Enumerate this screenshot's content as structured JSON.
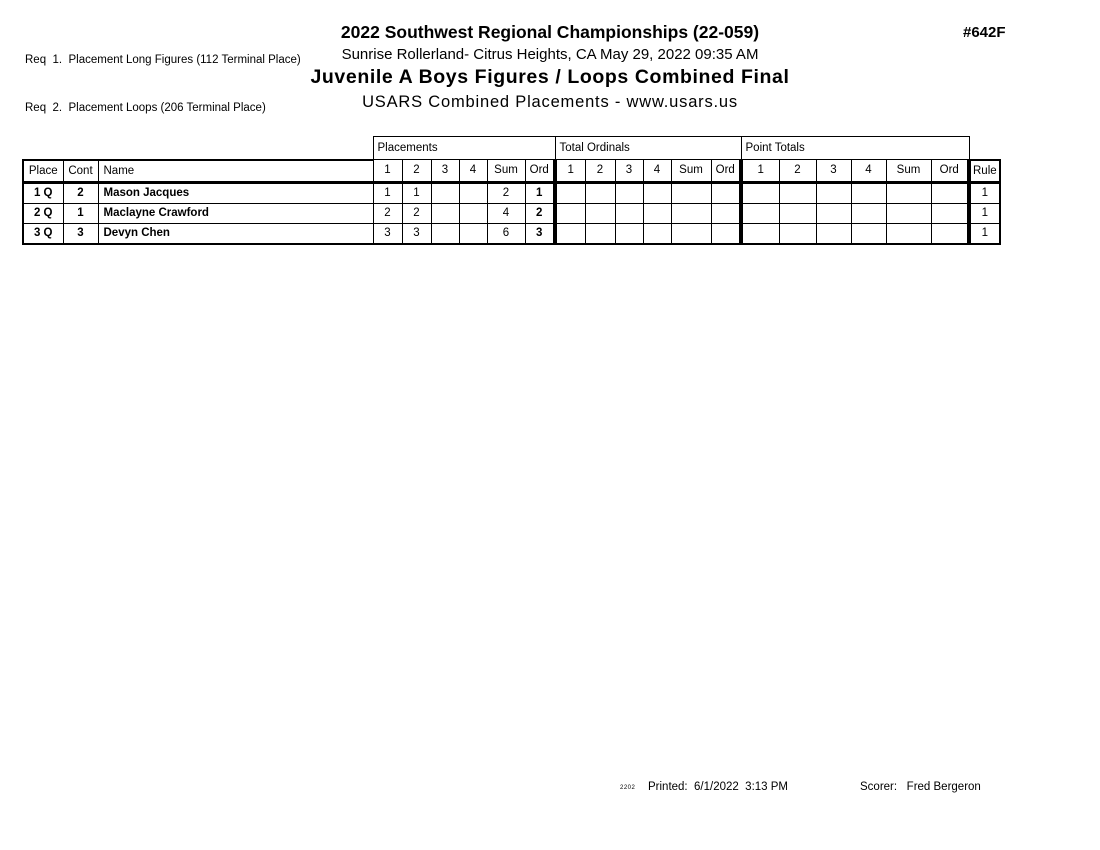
{
  "colors": {
    "ink": "#000000",
    "paper": "#ffffff"
  },
  "header": {
    "req_lines": [
      "Req  1.  Placement Long Figures (112 Terminal Place)",
      "Req  2.  Placement Loops (206 Terminal Place)"
    ],
    "event_code": "#642F",
    "title": "2022 Southwest Regional Championships (22-059)",
    "venue": "Sunrise Rollerland- Citrus Heights, CA  May 29, 2022  09:35 AM",
    "event_title": "Juvenile A Boys Figures / Loops Combined Final",
    "org_line": "USARS Combined Placements - www.usars.us"
  },
  "table": {
    "group_labels": [
      "Placements",
      "Total Ordinals",
      "Point Totals"
    ],
    "left_headers": [
      "Place",
      "Cont",
      "Name"
    ],
    "metric_headers": [
      "1",
      "2",
      "3",
      "4",
      "Sum",
      "Ord"
    ],
    "rule_header": "Rule",
    "rows": [
      {
        "place": "1 Q",
        "cont": "2",
        "name": "Mason Jacques",
        "placements": [
          "1",
          "1",
          "",
          "",
          "2",
          "1"
        ],
        "total_ordinals": [
          "",
          "",
          "",
          "",
          "",
          ""
        ],
        "point_totals": [
          "",
          "",
          "",
          "",
          "",
          ""
        ],
        "rule": "1"
      },
      {
        "place": "2 Q",
        "cont": "1",
        "name": "Maclayne Crawford",
        "placements": [
          "2",
          "2",
          "",
          "",
          "4",
          "2"
        ],
        "total_ordinals": [
          "",
          "",
          "",
          "",
          "",
          ""
        ],
        "point_totals": [
          "",
          "",
          "",
          "",
          "",
          ""
        ],
        "rule": "1"
      },
      {
        "place": "3 Q",
        "cont": "3",
        "name": "Devyn Chen",
        "placements": [
          "3",
          "3",
          "",
          "",
          "6",
          "3"
        ],
        "total_ordinals": [
          "",
          "",
          "",
          "",
          "",
          ""
        ],
        "point_totals": [
          "",
          "",
          "",
          "",
          "",
          ""
        ],
        "rule": "1"
      }
    ]
  },
  "footer": {
    "version_mark": "2202",
    "printed_label": "Printed:",
    "printed_value": "6/1/2022  3:13 PM",
    "scorer_label": "Scorer:",
    "scorer_value": "Fred Bergeron"
  }
}
